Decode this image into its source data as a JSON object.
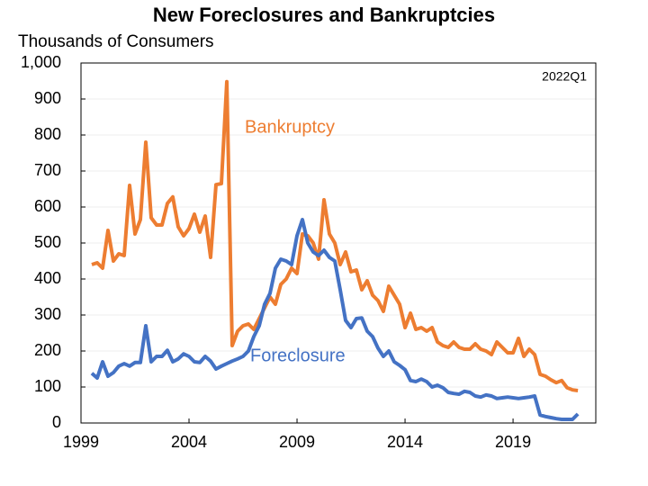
{
  "chart_data": {
    "type": "line",
    "title": "New Foreclosures and Bankruptcies",
    "y_label": "Thousands of Consumers",
    "annotations": [
      "2022Q1"
    ],
    "x": [
      1999.5,
      1999.75,
      2000,
      2000.25,
      2000.5,
      2000.75,
      2001,
      2001.25,
      2001.5,
      2001.75,
      2002,
      2002.25,
      2002.5,
      2002.75,
      2003,
      2003.25,
      2003.5,
      2003.75,
      2004,
      2004.25,
      2004.5,
      2004.75,
      2005,
      2005.25,
      2005.5,
      2005.75,
      2006,
      2006.25,
      2006.5,
      2006.75,
      2007,
      2007.25,
      2007.5,
      2007.75,
      2008,
      2008.25,
      2008.5,
      2008.75,
      2009,
      2009.25,
      2009.5,
      2009.75,
      2010,
      2010.25,
      2010.5,
      2010.75,
      2011,
      2011.25,
      2011.5,
      2011.75,
      2012,
      2012.25,
      2012.5,
      2012.75,
      2013,
      2013.25,
      2013.5,
      2013.75,
      2014,
      2014.25,
      2014.5,
      2014.75,
      2015,
      2015.25,
      2015.5,
      2015.75,
      2016,
      2016.25,
      2016.5,
      2016.75,
      2017,
      2017.25,
      2017.5,
      2017.75,
      2018,
      2018.25,
      2018.5,
      2018.75,
      2019,
      2019.25,
      2019.5,
      2019.75,
      2020,
      2020.25,
      2020.5,
      2020.75,
      2021,
      2021.25,
      2021.5,
      2021.75,
      2022
    ],
    "series": [
      {
        "name": "Bankruptcy",
        "color": "#ed7d31",
        "values": [
          440,
          445,
          430,
          535,
          450,
          470,
          465,
          660,
          525,
          565,
          780,
          570,
          550,
          550,
          610,
          628,
          545,
          520,
          540,
          580,
          530,
          575,
          460,
          662,
          665,
          948,
          215,
          255,
          270,
          275,
          260,
          290,
          320,
          350,
          330,
          385,
          400,
          430,
          415,
          525,
          520,
          500,
          455,
          620,
          525,
          500,
          440,
          475,
          420,
          425,
          370,
          395,
          355,
          340,
          310,
          380,
          355,
          330,
          265,
          305,
          260,
          265,
          255,
          265,
          225,
          215,
          210,
          225,
          210,
          205,
          205,
          220,
          205,
          200,
          190,
          225,
          210,
          195,
          195,
          235,
          185,
          205,
          190,
          135,
          130,
          120,
          112,
          118,
          98,
          92,
          90
        ]
      },
      {
        "name": "Foreclosure",
        "color": "#4472c4",
        "values": [
          138,
          125,
          170,
          130,
          140,
          158,
          165,
          158,
          168,
          168,
          270,
          170,
          185,
          185,
          202,
          170,
          178,
          192,
          185,
          170,
          168,
          185,
          172,
          150,
          158,
          165,
          172,
          178,
          185,
          200,
          240,
          270,
          330,
          360,
          430,
          455,
          450,
          440,
          520,
          565,
          500,
          475,
          465,
          480,
          460,
          450,
          370,
          285,
          265,
          290,
          292,
          255,
          240,
          208,
          185,
          200,
          170,
          160,
          148,
          118,
          115,
          122,
          115,
          100,
          105,
          98,
          85,
          82,
          80,
          88,
          85,
          75,
          72,
          78,
          75,
          68,
          70,
          72,
          70,
          68,
          70,
          72,
          75,
          22,
          18,
          15,
          12,
          10,
          10,
          10,
          25
        ]
      }
    ],
    "xlim": [
      1999,
      2022.83
    ],
    "xticks": [
      1999,
      2004,
      2009,
      2014,
      2019
    ],
    "ylim": [
      0,
      1000
    ],
    "yticks": [
      0,
      100,
      200,
      300,
      400,
      500,
      600,
      700,
      800,
      900,
      {
        "value": 1000,
        "label": "1,000"
      }
    ],
    "grid": true
  }
}
